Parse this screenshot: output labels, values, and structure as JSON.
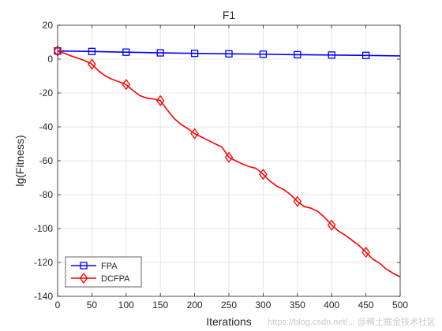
{
  "chart_data": {
    "type": "line",
    "title": "F1",
    "xlabel": "Iterations",
    "ylabel": "lg(Fitness)",
    "xlim": [
      0,
      500
    ],
    "ylim": [
      -140,
      20
    ],
    "xticks": [
      0,
      50,
      100,
      150,
      200,
      250,
      300,
      350,
      400,
      450,
      500
    ],
    "yticks": [
      20,
      0,
      -20,
      -40,
      -60,
      -80,
      -100,
      -120,
      -140
    ],
    "grid": true,
    "legend_position": "bottom-left",
    "series": [
      {
        "name": "FPA",
        "color": "#0000ff",
        "marker": "square",
        "x": [
          0,
          50,
          100,
          150,
          200,
          250,
          300,
          350,
          400,
          450,
          500
        ],
        "y": [
          4.8,
          4.5,
          4.1,
          3.7,
          3.4,
          3.1,
          2.9,
          2.6,
          2.4,
          2.2,
          1.9
        ],
        "marker_x": [
          0,
          50,
          100,
          150,
          200,
          250,
          300,
          350,
          400,
          450
        ],
        "marker_y": [
          4.8,
          4.5,
          4.1,
          3.7,
          3.4,
          3.1,
          2.9,
          2.6,
          2.4,
          2.2
        ]
      },
      {
        "name": "DCFPA",
        "color": "#ff0000",
        "marker": "diamond",
        "x": [
          0,
          10,
          20,
          30,
          40,
          50,
          60,
          70,
          80,
          90,
          100,
          110,
          120,
          130,
          140,
          150,
          160,
          170,
          180,
          190,
          200,
          210,
          220,
          230,
          240,
          250,
          260,
          270,
          280,
          290,
          300,
          310,
          320,
          330,
          340,
          350,
          360,
          370,
          380,
          390,
          400,
          410,
          420,
          430,
          440,
          450,
          460,
          470,
          480,
          490,
          500
        ],
        "y": [
          4.8,
          3.5,
          1.8,
          0.5,
          -1.0,
          -3.0,
          -7.0,
          -10.0,
          -12.0,
          -13.5,
          -15.0,
          -18.5,
          -21.5,
          -23.0,
          -23.5,
          -24.5,
          -30.0,
          -35.0,
          -38.5,
          -41.0,
          -44.0,
          -46.0,
          -48.0,
          -50.0,
          -52.0,
          -58.0,
          -60.0,
          -62.0,
          -63.5,
          -64.5,
          -68.0,
          -72.0,
          -75.0,
          -77.0,
          -80.0,
          -84.0,
          -87.0,
          -88.0,
          -90.0,
          -93.5,
          -98.0,
          -101.5,
          -104.0,
          -107.0,
          -110.0,
          -114.0,
          -118.0,
          -120.5,
          -124.0,
          -126.5,
          -128.5
        ],
        "marker_x": [
          0,
          50,
          100,
          150,
          200,
          250,
          300,
          350,
          400,
          450
        ],
        "marker_y": [
          4.8,
          -3.0,
          -15.0,
          -24.5,
          -44.0,
          -58.0,
          -68.0,
          -84.0,
          -98.0,
          -114.0
        ]
      }
    ],
    "watermark": "https://blog.csdn.net/... @稀土掘金技术社区"
  }
}
